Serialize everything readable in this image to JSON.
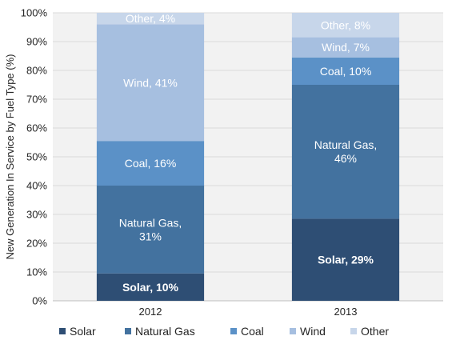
{
  "chart_data": {
    "type": "bar",
    "stacked": true,
    "categories": [
      "2012",
      "2013"
    ],
    "ylabel": "New Generation In Service by Fuel Type (%)",
    "ylim": [
      0,
      100
    ],
    "yticks": [
      "0%",
      "10%",
      "20%",
      "30%",
      "40%",
      "50%",
      "60%",
      "70%",
      "80%",
      "90%",
      "100%"
    ],
    "grid": true,
    "legend_position": "bottom",
    "series": [
      {
        "name": "Solar",
        "color": "#2e4e74",
        "label_color": "#ffffff",
        "bold": true,
        "values": [
          9.5,
          28.5
        ],
        "labels": [
          [
            "Solar, 10%"
          ],
          [
            "Solar, 29%"
          ]
        ]
      },
      {
        "name": "Natural Gas",
        "color": "#43729f",
        "label_color": "#ffffff",
        "bold": false,
        "values": [
          30.5,
          46.5
        ],
        "labels": [
          [
            "Natural Gas,",
            "31%"
          ],
          [
            "Natural Gas,",
            "46%"
          ]
        ]
      },
      {
        "name": "Coal",
        "color": "#5b91c7",
        "label_color": "#ffffff",
        "bold": false,
        "values": [
          15.5,
          9.5
        ],
        "labels": [
          [
            "Coal, 16%"
          ],
          [
            "Coal, 10%"
          ]
        ]
      },
      {
        "name": "Wind",
        "color": "#a6bfe0",
        "label_color": "#ffffff",
        "bold": false,
        "values": [
          40.5,
          7.0
        ],
        "labels": [
          [
            "Wind, 41%"
          ],
          [
            "Wind, 7%"
          ]
        ]
      },
      {
        "name": "Other",
        "color": "#c7d6ea",
        "label_color": "#ffffff",
        "bold": false,
        "values": [
          4.0,
          8.5
        ],
        "labels": [
          [
            "Other, 4%"
          ],
          [
            "Other, 8%"
          ]
        ]
      }
    ]
  }
}
